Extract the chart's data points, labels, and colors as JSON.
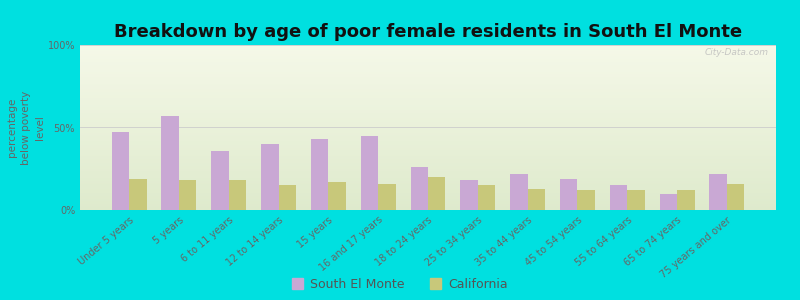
{
  "title": "Breakdown by age of poor female residents in South El Monte",
  "ylabel": "percentage\nbelow poverty\nlevel",
  "categories": [
    "Under 5 years",
    "5 years",
    "6 to 11 years",
    "12 to 14 years",
    "15 years",
    "16 and 17 years",
    "18 to 24 years",
    "25 to 34 years",
    "35 to 44 years",
    "45 to 54 years",
    "55 to 64 years",
    "65 to 74 years",
    "75 years and over"
  ],
  "south_el_monte": [
    47,
    57,
    36,
    40,
    43,
    45,
    26,
    18,
    22,
    19,
    15,
    10,
    22
  ],
  "california": [
    19,
    18,
    18,
    15,
    17,
    16,
    20,
    15,
    13,
    12,
    12,
    12,
    16
  ],
  "south_el_monte_color": "#c9a8d4",
  "california_color": "#c8c87a",
  "plot_bg_top": "#f5f8e8",
  "plot_bg_bottom": "#deeacc",
  "outer_bg": "#00e0e0",
  "ylim": [
    0,
    100
  ],
  "yticks": [
    0,
    50,
    100
  ],
  "ytick_labels": [
    "0%",
    "50%",
    "100%"
  ],
  "title_fontsize": 13,
  "axis_fontsize": 7,
  "ylabel_fontsize": 7.5,
  "legend_fontsize": 9,
  "bar_width": 0.35,
  "watermark": "City-Data.com"
}
